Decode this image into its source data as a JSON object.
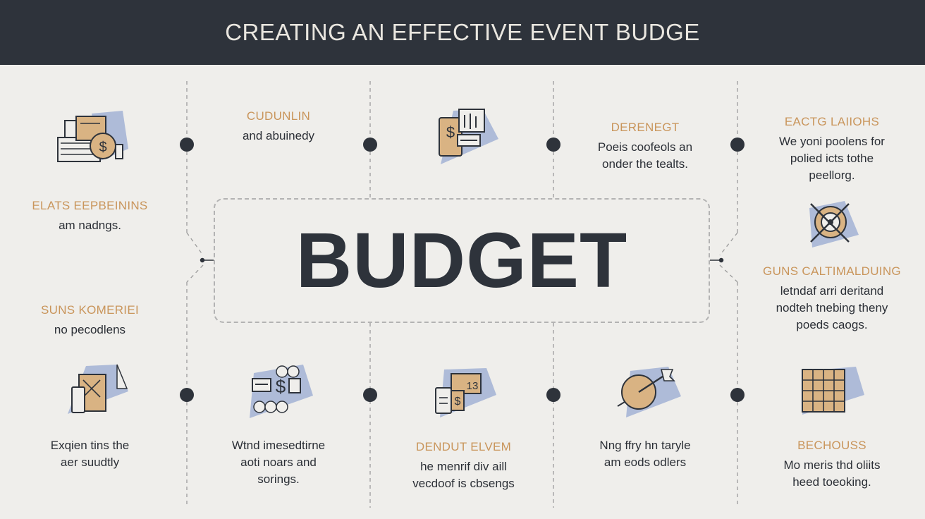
{
  "header": {
    "title": "CREATING AN EFFECTIVE EVENT BUDGE"
  },
  "center": {
    "word": "BUDGET"
  },
  "blocks": [
    {
      "head": "CUDUNLIN",
      "body": [
        "and abuinedy"
      ]
    },
    {
      "head": "DERENEGT",
      "body": [
        "Poeis coofeols an",
        "onder the tealts."
      ]
    },
    {
      "head": "EACTG LAIIOHS",
      "body": [
        "We yoni poolens for",
        "polied icts tothe",
        "peellorg."
      ]
    },
    {
      "head": "ELATS EEPBEININS",
      "body": [
        "am nadngs."
      ]
    },
    {
      "head": "SUNS KOMERIEI",
      "body": [
        "no pecodlens"
      ]
    },
    {
      "head": "GUNS CALTIMALDUING",
      "body": [
        "letndaf arri deritand",
        "nodteh tnebing theny",
        "poeds caogs."
      ]
    },
    {
      "head": "",
      "body": [
        "Exqien tins the",
        "aer suudtly"
      ]
    },
    {
      "head": "",
      "body": [
        "Wtnd imesedtirne",
        "aoti noars and",
        "sorings."
      ]
    },
    {
      "head": "DENDUT ELVEM",
      "body": [
        "he menrif div aill",
        "vecdoof is cbsengs"
      ]
    },
    {
      "head": "",
      "body": [
        "Nng ffry hn taryle",
        "am eods odlers"
      ]
    },
    {
      "head": "BECHOUSS",
      "body": [
        "Mo meris thd oliits",
        "heed toeoking."
      ]
    }
  ],
  "icons": {
    "icon_1": "money-documents-icon",
    "icon_2": "price-tag-icon",
    "icon_3": "compass-gear-icon",
    "icon_4": "tablet-icon",
    "icon_5": "dollar-coins-icon",
    "icon_6": "phone-receipt-icon",
    "icon_7": "target-flag-icon",
    "icon_8": "calendar-grid-icon",
    "icon_1_text": "$",
    "icon_2_text": "$",
    "icon_5_text": "$",
    "icon_6_text": "13"
  },
  "colors": {
    "header_bg": "#2e333b",
    "background": "#efeeeb",
    "accent_tan": "#d9b383",
    "accent_blue": "#aebbd8",
    "heading_gold": "#c9955b",
    "node": "#2e333b"
  }
}
